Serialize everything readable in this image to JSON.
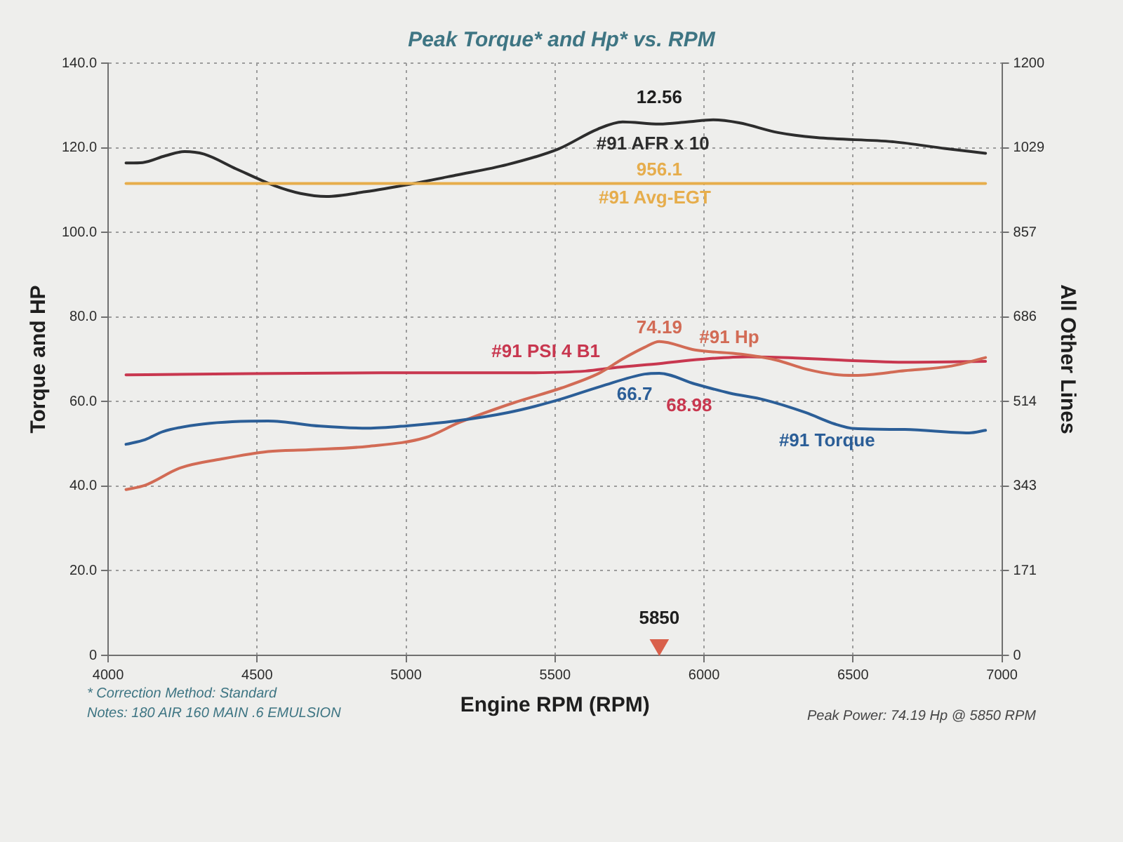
{
  "chart_data": {
    "type": "line",
    "title": "Peak Torque* and Hp* vs. RPM",
    "xlabel": "Engine RPM (RPM)",
    "ylabel": "Torque and HP",
    "y2label": "All Other Lines",
    "xlim": [
      4000,
      7000
    ],
    "xticks": [
      4000,
      4500,
      5000,
      5500,
      6000,
      6500,
      7000
    ],
    "ylim": [
      0,
      140
    ],
    "yticks": [
      0,
      {
        "value": 20,
        "label": "20.0"
      },
      {
        "value": 40,
        "label": "40.0"
      },
      {
        "value": 60,
        "label": "60.0"
      },
      {
        "value": 80,
        "label": "80.0"
      },
      {
        "value": 100,
        "label": "100.0"
      },
      {
        "value": 120,
        "label": "120.0"
      },
      {
        "value": 140,
        "label": "140.0"
      }
    ],
    "y2lim": [
      0,
      1200
    ],
    "y2ticks": [
      0,
      {
        "value": 171.43,
        "label": "171"
      },
      {
        "value": 342.86,
        "label": "343"
      },
      {
        "value": 514.29,
        "label": "514"
      },
      {
        "value": 685.71,
        "label": "686"
      },
      {
        "value": 857.14,
        "label": "857"
      },
      {
        "value": 1028.57,
        "label": "1029"
      },
      1200
    ],
    "grid": true,
    "legend": false,
    "series": [
      {
        "name": "#91 Torque",
        "color": "#2b5e97",
        "x": [
          4060,
          4124,
          4184,
          4320,
          4537,
          4712,
          4871,
          5008,
          5164,
          5342,
          5497,
          5654,
          5801,
          5850,
          5968,
          6086,
          6203,
          6341,
          6439,
          6507,
          6674,
          6890,
          6945
        ],
        "values": [
          49.9,
          51.0,
          52.9,
          54.7,
          55.4,
          54.2,
          53.7,
          54.3,
          55.4,
          57.4,
          60.1,
          63.6,
          66.5,
          66.7,
          64.2,
          62.0,
          60.4,
          57.4,
          54.7,
          53.6,
          53.4,
          52.6,
          53.2
        ],
        "value_labels": [
          null,
          null,
          null,
          null,
          null,
          null,
          null,
          null,
          null,
          null,
          null,
          null,
          null,
          "66.7",
          null,
          null,
          null,
          null,
          null,
          null,
          null,
          null,
          null
        ]
      },
      {
        "name": "#91 Hp",
        "color": "#d26b55",
        "x": [
          4060,
          4124,
          4242,
          4379,
          4537,
          4673,
          4870,
          5066,
          5177,
          5365,
          5521,
          5648,
          5725,
          5800,
          5850,
          5970,
          6125,
          6243,
          6341,
          6439,
          6507,
          6674,
          6831,
          6945
        ],
        "values": [
          39.2,
          40.2,
          44.3,
          46.4,
          48.2,
          48.6,
          49.4,
          51.5,
          55.0,
          59.8,
          63.2,
          66.7,
          70.0,
          72.8,
          74.19,
          72.2,
          71.2,
          69.8,
          67.7,
          66.4,
          66.2,
          67.3,
          68.4,
          70.4
        ],
        "value_labels": [
          null,
          null,
          null,
          null,
          null,
          null,
          null,
          null,
          null,
          null,
          null,
          null,
          null,
          null,
          "74.19",
          null,
          null,
          null,
          null,
          null,
          null,
          null,
          null,
          null
        ]
      },
      {
        "name": "#91 PSI 4 B1",
        "color": "#c8374f",
        "x": [
          4060,
          4477,
          4956,
          5365,
          5601,
          5709,
          5850,
          5991,
          6148,
          6307,
          6462,
          6674,
          6945
        ],
        "values": [
          66.3,
          66.6,
          66.8,
          66.8,
          67.2,
          68.1,
          68.98,
          70.0,
          70.6,
          70.3,
          69.8,
          69.3,
          69.5
        ],
        "value_labels": [
          null,
          null,
          null,
          null,
          null,
          null,
          "68.98",
          null,
          null,
          null,
          null,
          null,
          null
        ]
      },
      {
        "name": "#91 Avg-EGT",
        "color": "#e6ad4c",
        "axis": "y2",
        "x": [
          4060,
          5850,
          6945
        ],
        "values": [
          956.1,
          956.1,
          956.1
        ],
        "value_labels": [
          null,
          "956.1",
          null
        ]
      },
      {
        "name": "#91 AFR x 10",
        "color": "#2d2d2d",
        "x": [
          4060,
          4116,
          4192,
          4257,
          4322,
          4430,
          4560,
          4646,
          4733,
          4863,
          5014,
          5166,
          5339,
          5511,
          5643,
          5727,
          5850,
          5944,
          6031,
          6118,
          6248,
          6377,
          6638,
          6811,
          6945
        ],
        "values": [
          116.4,
          116.5,
          118.1,
          119.1,
          118.5,
          115.0,
          111.0,
          109.2,
          108.5,
          109.6,
          111.4,
          113.5,
          116.0,
          119.7,
          124.4,
          126.1,
          125.6,
          126.1,
          126.6,
          125.9,
          123.6,
          122.4,
          121.4,
          119.8,
          118.7
        ]
      },
      {
        "type": "scatter",
        "color": "#d9604b",
        "marker": "triangle",
        "x": [
          5850
        ],
        "values": [
          2.5
        ]
      }
    ],
    "annotations": [
      {
        "text": "5850",
        "x": 5850,
        "y": 2.5
      },
      {
        "text": "12.56",
        "x": 5850,
        "y": 125.6
      },
      "* Correction Method: Standard",
      "Notes: 180 AIR 160 MAIN .6 EMULSION",
      "Peak Power: 74.19 Hp @ 5850 RPM"
    ]
  }
}
